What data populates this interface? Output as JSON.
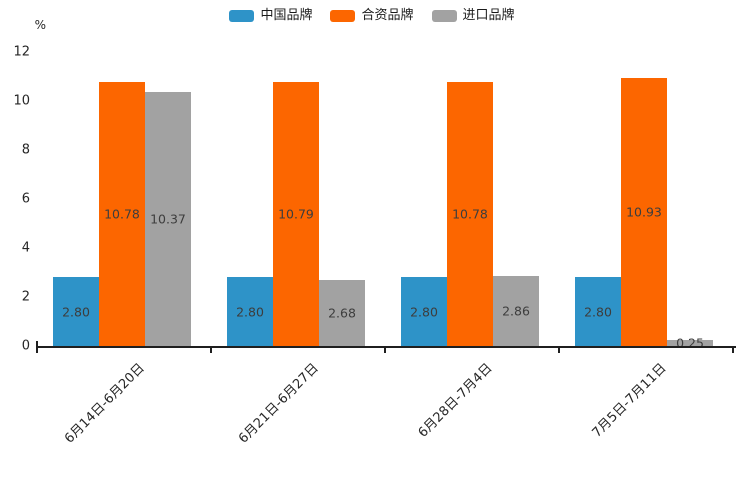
{
  "chart_data": {
    "type": "bar",
    "title": "",
    "ylabel": "%",
    "xlabel": "",
    "ylim": [
      0,
      12
    ],
    "yticks": [
      0,
      2,
      4,
      6,
      8,
      10,
      12
    ],
    "grid": false,
    "legend_position": "top-center",
    "value_labels": "inside-center, 2 decimals",
    "background_color": "#FFFFFF",
    "axis_color": "#1F1F1F",
    "tick_label_color": "#262626",
    "value_label_color": "#3D3D3D",
    "categories": [
      "6月14日-6月20日",
      "6月21日-6月27日",
      "6月28日-7月4日",
      "7月5日-7月11日"
    ],
    "series": [
      {
        "name": "中国品牌",
        "color": "#2E93C8",
        "values": [
          2.8,
          2.8,
          2.8,
          2.8
        ]
      },
      {
        "name": "合资品牌",
        "color": "#FC6600",
        "values": [
          10.78,
          10.79,
          10.78,
          10.93
        ]
      },
      {
        "name": "进口品牌",
        "color": "#A2A2A2",
        "values": [
          10.37,
          2.68,
          2.86,
          0.25
        ]
      }
    ]
  }
}
